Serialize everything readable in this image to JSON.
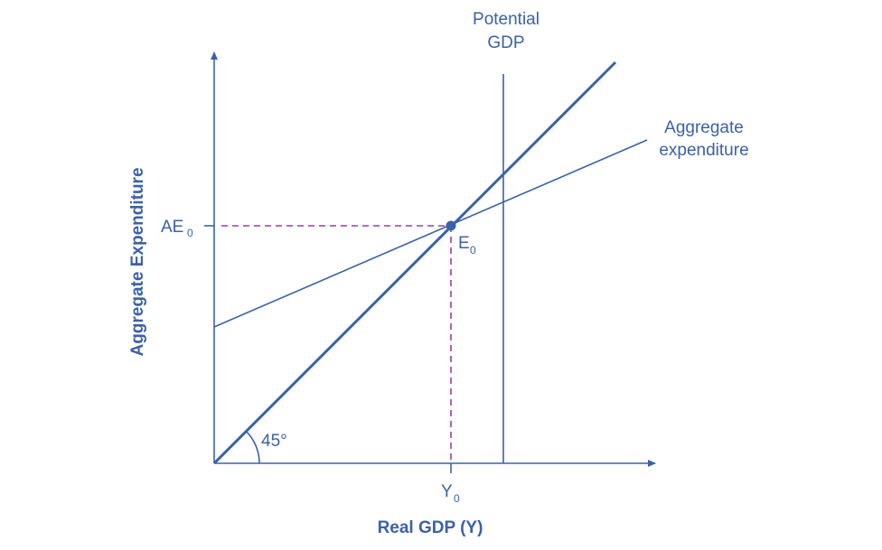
{
  "diagram": {
    "y_axis_label": "Aggregate Expenditure",
    "x_axis_label": "Real GDP (Y)",
    "potential_gdp_label_line1": "Potential",
    "potential_gdp_label_line2": "GDP",
    "ae_curve_label_line1": "Aggregate",
    "ae_curve_label_line2": "expenditure",
    "ae0_label": "AE",
    "ae0_sub": "0",
    "e0_label": "E",
    "e0_sub": "0",
    "y0_label": "Y",
    "y0_sub": "0",
    "angle_label": "45°",
    "colors": {
      "line": "#3a62a8",
      "dashed": "#9b3fa0"
    }
  }
}
